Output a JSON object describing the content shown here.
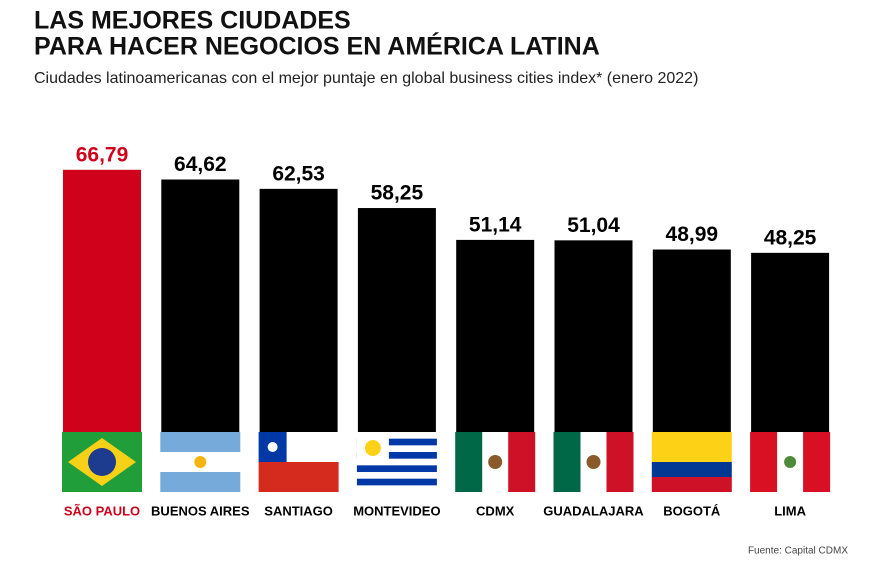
{
  "chart_data": {
    "type": "bar",
    "title_lines": [
      "LAS MEJORES CIUDADES",
      "PARA HACER NEGOCIOS EN AMÉRICA LATINA"
    ],
    "subtitle": "Ciudades latinoamericanas con el mejor puntaje en global business cities index* (enero 2022)",
    "categories": [
      "SÃO PAULO",
      "BUENOS AIRES",
      "SANTIAGO",
      "MONTEVIDEO",
      "CDMX",
      "GUADALAJARA",
      "BOGOTÁ",
      "LIMA"
    ],
    "values": [
      66.79,
      64.62,
      62.53,
      58.25,
      51.14,
      51.04,
      48.99,
      48.25
    ],
    "value_labels": [
      "66,79",
      "64,62",
      "62,53",
      "58,25",
      "51,14",
      "51,04",
      "48,99",
      "48,25"
    ],
    "colors": [
      "#d0021b",
      "#000000",
      "#000000",
      "#000000",
      "#000000",
      "#000000",
      "#000000",
      "#000000"
    ],
    "source": "Fuente: Capital CDMX"
  }
}
